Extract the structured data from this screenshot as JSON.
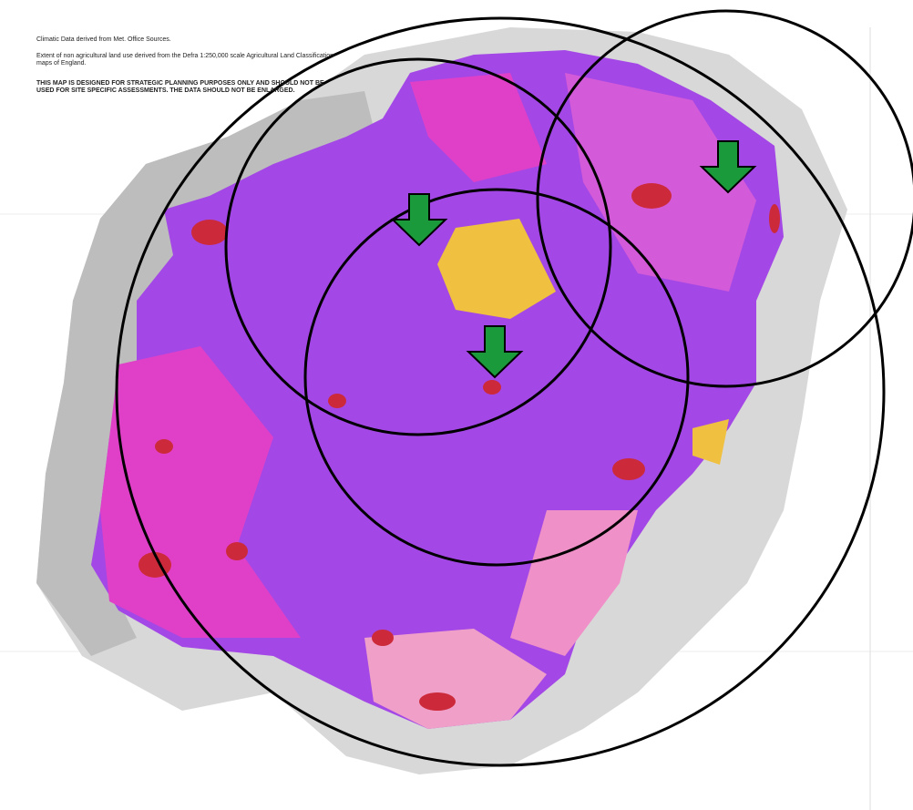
{
  "notes": {
    "source": "Climatic Data derived from Met. Office Sources.",
    "extent": "Extent of non agricultural land use derived from the Defra 1:250,000 scale Agricultural Land Classification maps of England.",
    "warning": "THIS MAP IS DESIGNED FOR STRATEGIC PLANNING PURPOSES ONLY AND SHOULD NOT BE USED FOR SITE SPECIFIC ASSESSMENTS.  THE DATA SHOULD NOT BE ENLARGED."
  }
}
